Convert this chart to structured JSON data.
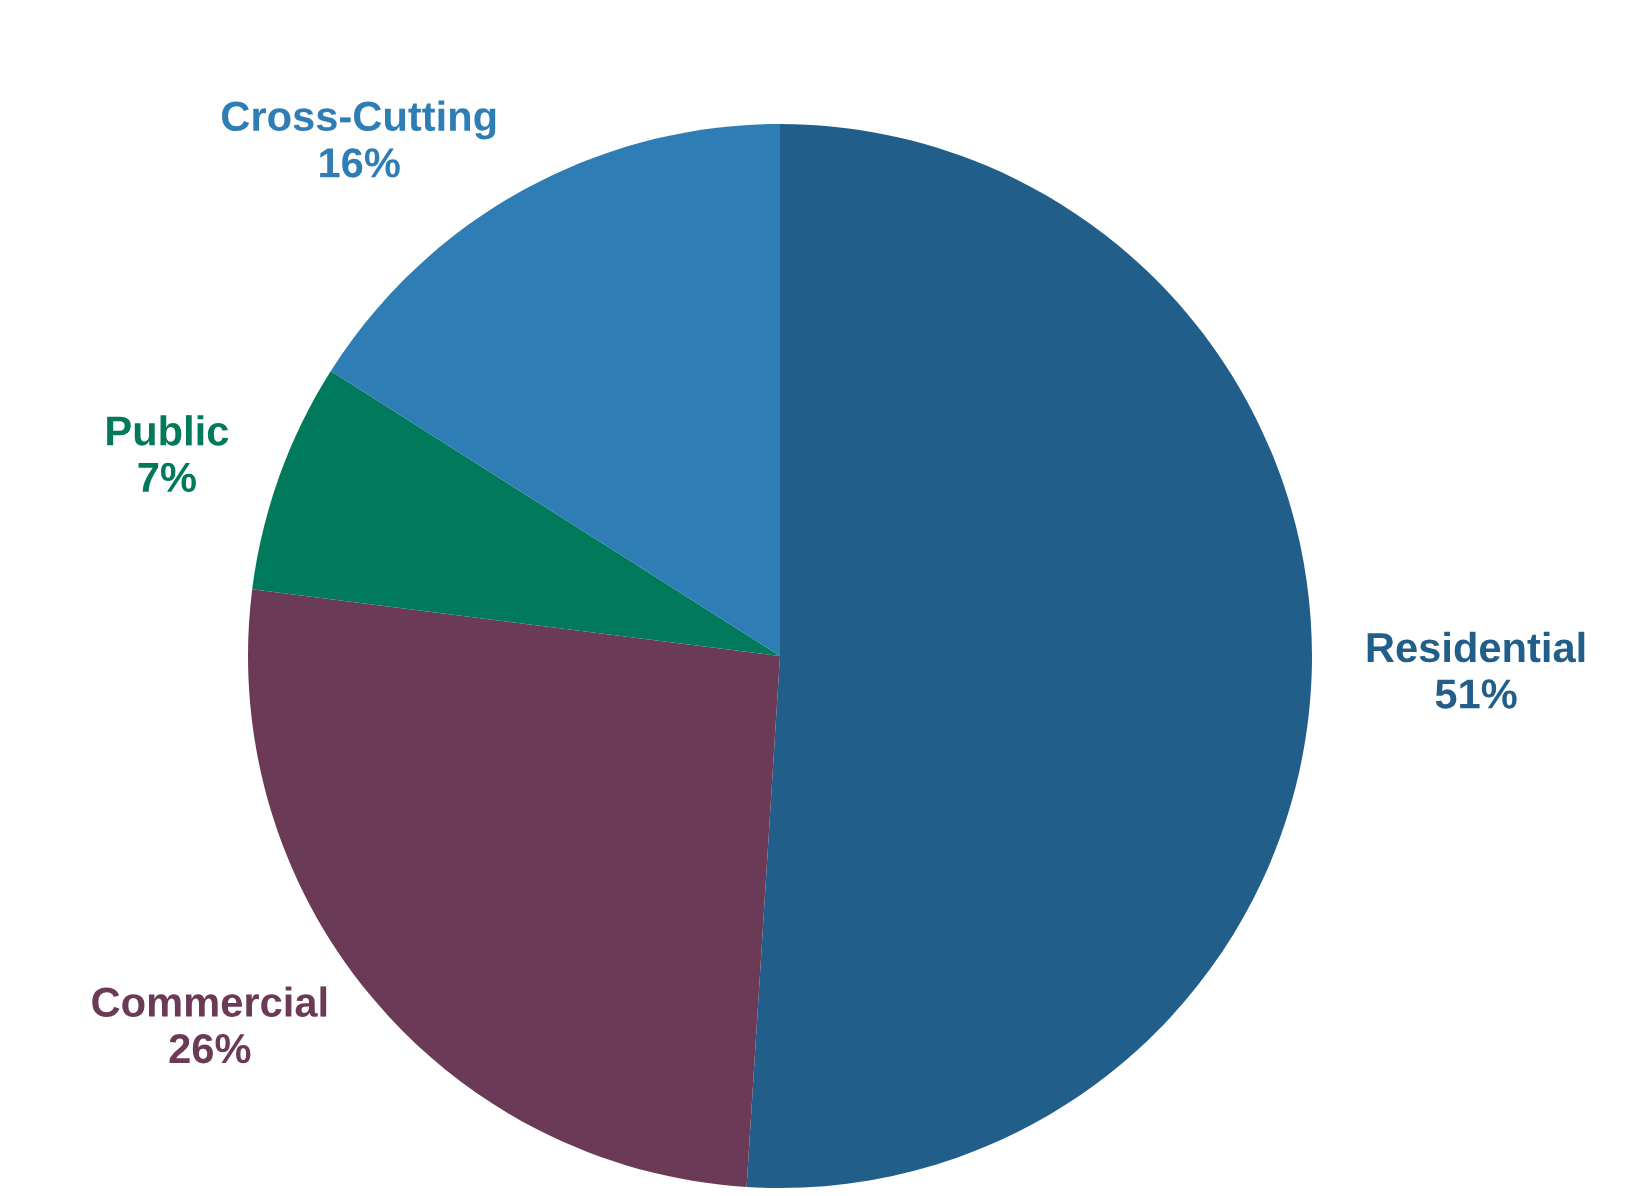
{
  "chart_data": {
    "type": "pie",
    "categories": [
      "Residential",
      "Commercial",
      "Public",
      "Cross-Cutting"
    ],
    "values": [
      51,
      26,
      7,
      16
    ],
    "value_labels": [
      "51%",
      "26%",
      "7%",
      "16%"
    ],
    "colors": [
      "#225e8a",
      "#6b3a56",
      "#017a5c",
      "#2e7db5"
    ]
  }
}
